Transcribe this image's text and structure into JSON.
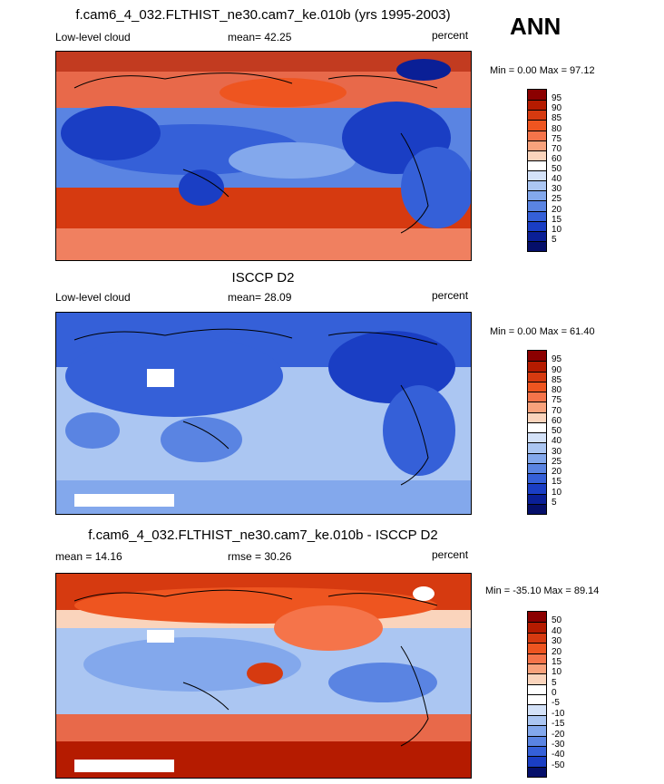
{
  "season": "ANN",
  "panels": [
    {
      "title": "f.cam6_4_032.FLTHIST_ne30.cam7_ke.010b (yrs 1995-2003)",
      "left_label": "Low-level cloud",
      "center_label": "mean=  42.25",
      "right_label": "percent",
      "minmax": "Min =   0.00 Max =  97.12",
      "levels": [
        "95",
        "90",
        "85",
        "80",
        "75",
        "70",
        "60",
        "50",
        "40",
        "30",
        "25",
        "20",
        "15",
        "10",
        "5"
      ],
      "colors": [
        "#8b0000",
        "#b51b00",
        "#d63a10",
        "#ee5520",
        "#f5744a",
        "#f8a27c",
        "#fad4bc",
        "#ffffff",
        "#d4e2f8",
        "#abc6f2",
        "#83a8ec",
        "#5a84e2",
        "#3560d8",
        "#1a3ec4",
        "#0a1f96",
        "#050f6a"
      ]
    },
    {
      "title": "ISCCP D2",
      "left_label": "Low-level cloud",
      "center_label": "mean=  28.09",
      "right_label": "percent",
      "minmax": "Min =   0.00 Max =  61.40",
      "levels": [
        "95",
        "90",
        "85",
        "80",
        "75",
        "70",
        "60",
        "50",
        "40",
        "30",
        "25",
        "20",
        "15",
        "10",
        "5"
      ],
      "colors": [
        "#8b0000",
        "#b51b00",
        "#d63a10",
        "#ee5520",
        "#f5744a",
        "#f8a27c",
        "#fad4bc",
        "#ffffff",
        "#d4e2f8",
        "#abc6f2",
        "#83a8ec",
        "#5a84e2",
        "#3560d8",
        "#1a3ec4",
        "#0a1f96",
        "#050f6a"
      ]
    },
    {
      "title": "f.cam6_4_032.FLTHIST_ne30.cam7_ke.010b - ISCCP D2",
      "left_label": "mean =  14.16",
      "center_label": "rmse =  30.26",
      "right_label": "percent",
      "minmax": "Min = -35.10 Max =  89.14",
      "levels": [
        "50",
        "40",
        "30",
        "20",
        "15",
        "10",
        "5",
        "0",
        "-5",
        "-10",
        "-15",
        "-20",
        "-30",
        "-40",
        "-50"
      ],
      "colors": [
        "#8b0000",
        "#b51b00",
        "#d63a10",
        "#ee5520",
        "#f5744a",
        "#f8a27c",
        "#fad4bc",
        "#ffffff",
        "#ffffff",
        "#d4e2f8",
        "#abc6f2",
        "#83a8ec",
        "#5a84e2",
        "#3560d8",
        "#1a3ec4",
        "#050f6a"
      ]
    }
  ]
}
